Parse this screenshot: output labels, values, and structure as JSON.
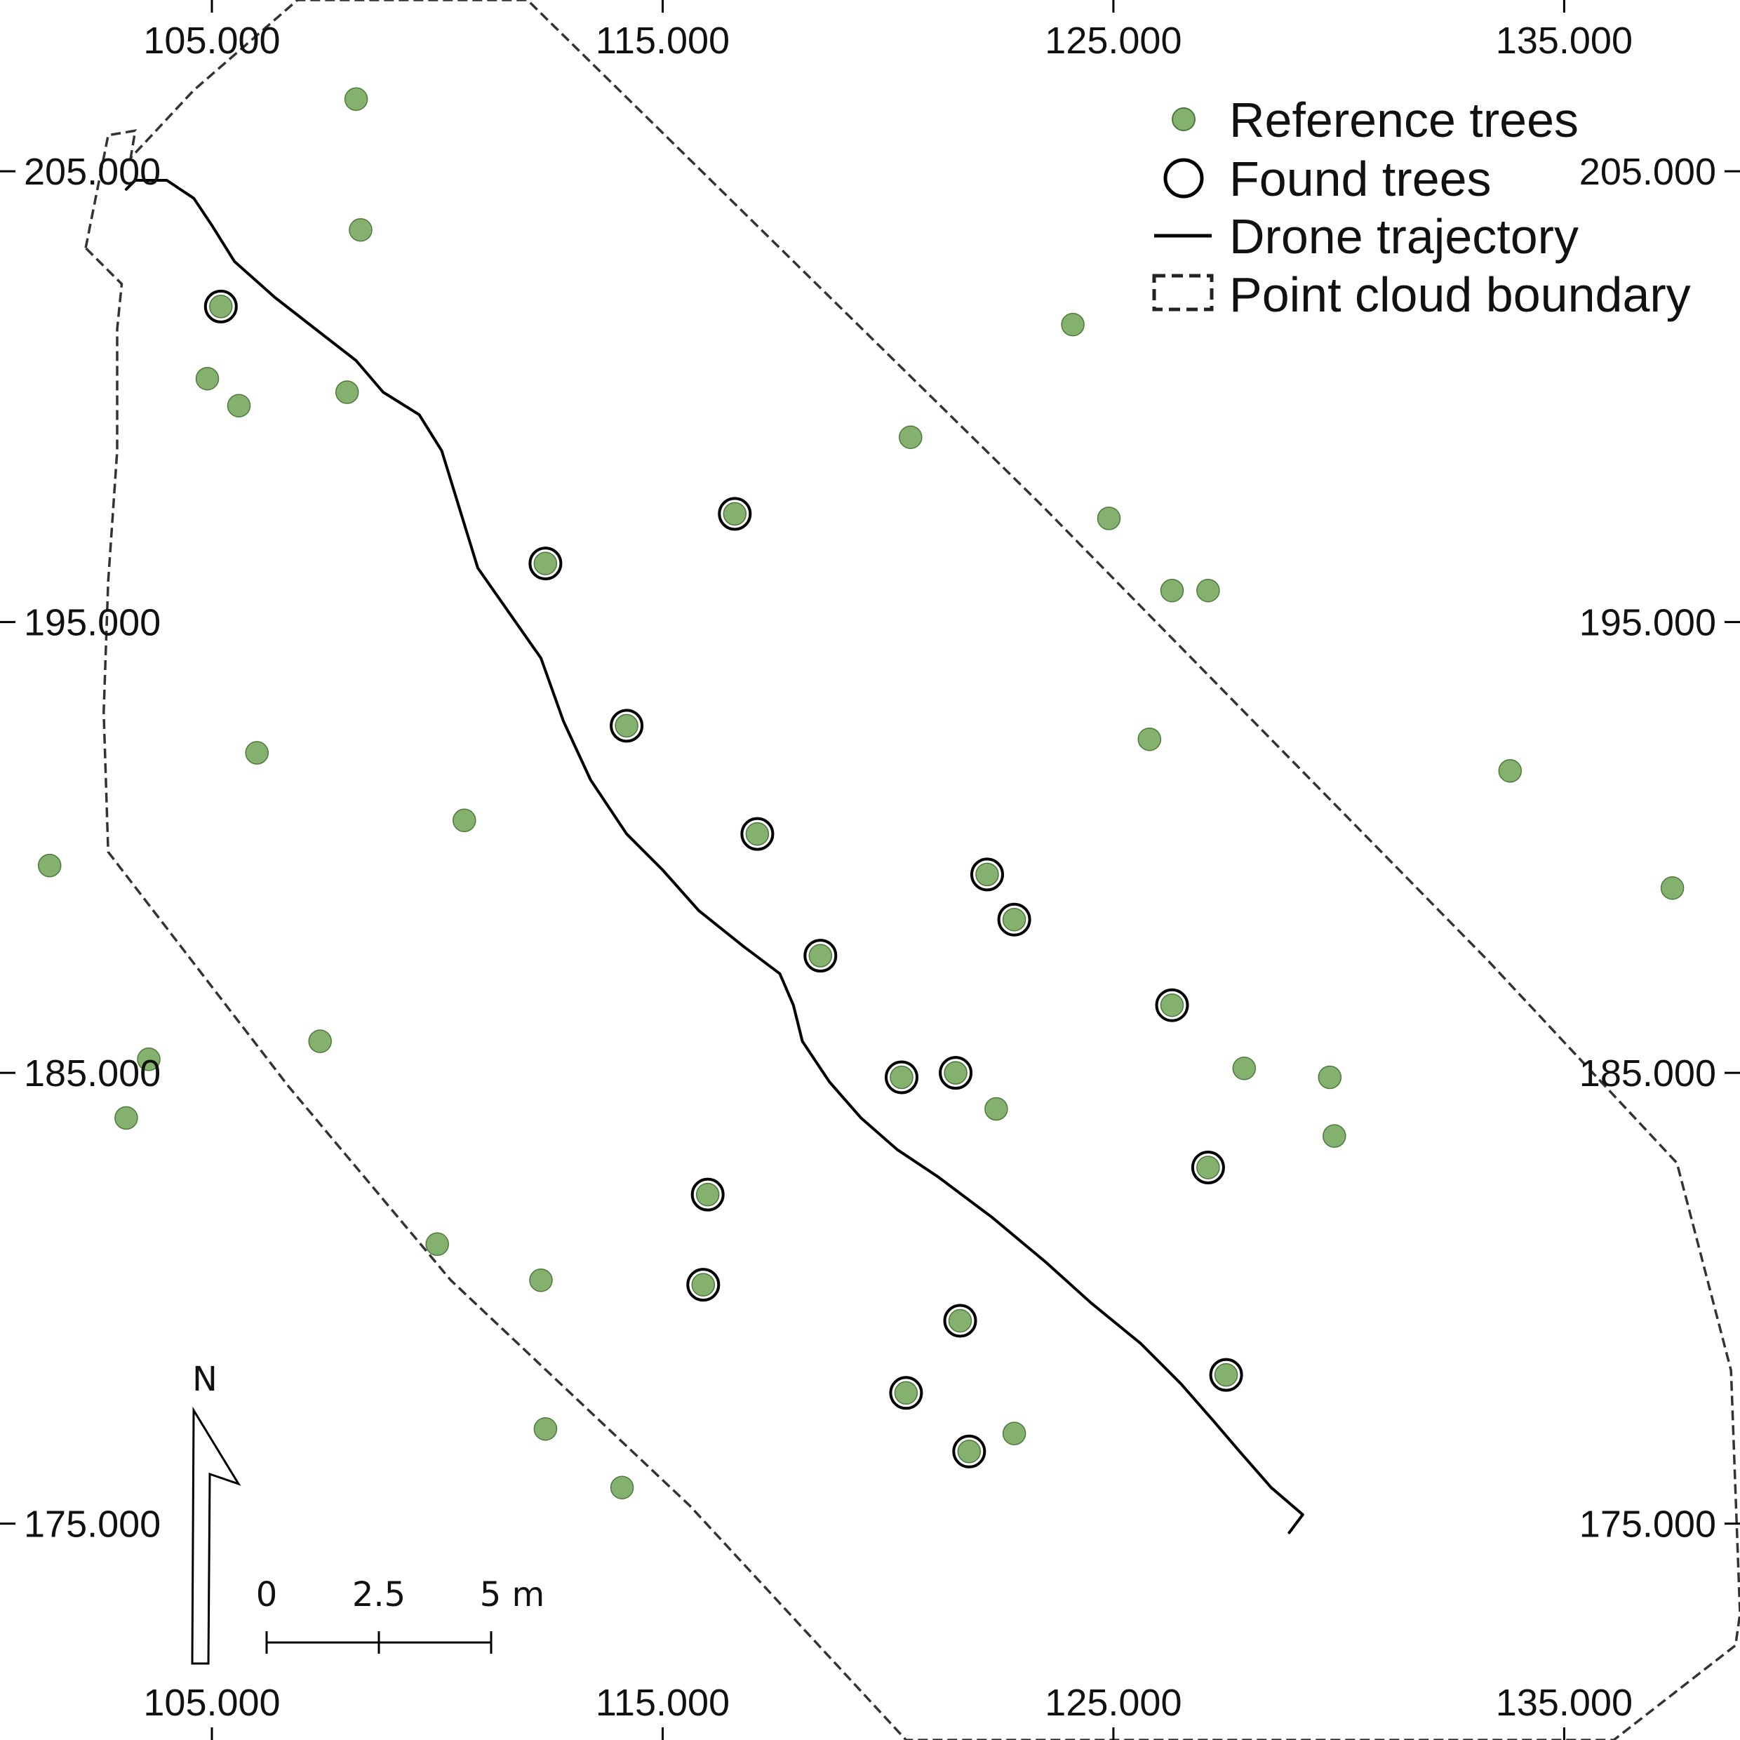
{
  "chart_data": {
    "type": "scatter",
    "x_axis": {
      "ticks": [
        105,
        115,
        125,
        135
      ],
      "tick_labels": [
        "105.000",
        "115.000",
        "125.000",
        "135.000"
      ],
      "placement": "top and bottom"
    },
    "y_axis": {
      "ticks": [
        205,
        195,
        185,
        175
      ],
      "tick_labels": [
        "205.000",
        "195.000",
        "185.000",
        "175.000"
      ],
      "placement": "left and right"
    },
    "xlim": [
      100.3,
      138.9
    ],
    "ylim": [
      170.2,
      208.8
    ],
    "grid": false,
    "legend_position": "top-right",
    "legend": [
      {
        "key": "reference",
        "label": "Reference trees"
      },
      {
        "key": "found",
        "label": "Found trees"
      },
      {
        "key": "trajectory",
        "label": "Drone trajectory"
      },
      {
        "key": "boundary",
        "label": "Point cloud boundary"
      }
    ],
    "colors": {
      "reference": "#84b26e",
      "reference_edge": "#4d7a3c",
      "found_ring": "#000000",
      "lines": "#000000",
      "boundary": "#333333"
    },
    "reference_trees": [
      [
        108.2,
        206.6
      ],
      [
        108.3,
        203.7
      ],
      [
        104.9,
        200.4
      ],
      [
        105.6,
        199.8
      ],
      [
        108.0,
        200.1
      ],
      [
        106.0,
        192.1
      ],
      [
        110.6,
        190.6
      ],
      [
        101.4,
        189.6
      ],
      [
        107.4,
        185.7
      ],
      [
        103.6,
        185.3
      ],
      [
        103.1,
        184.0
      ],
      [
        110.0,
        181.2
      ],
      [
        112.3,
        180.4
      ],
      [
        112.4,
        177.1
      ],
      [
        114.1,
        175.8
      ],
      [
        120.5,
        199.1
      ],
      [
        124.9,
        197.3
      ],
      [
        126.3,
        195.7
      ],
      [
        127.1,
        195.7
      ],
      [
        125.8,
        192.4
      ],
      [
        133.8,
        191.7
      ],
      [
        137.4,
        189.1
      ],
      [
        127.9,
        185.1
      ],
      [
        129.8,
        184.9
      ],
      [
        122.4,
        184.2
      ],
      [
        129.9,
        183.6
      ],
      [
        124.1,
        201.6
      ],
      [
        122.8,
        177.0
      ],
      [
        105.2,
        202.0
      ],
      [
        112.4,
        196.3
      ],
      [
        114.2,
        192.7
      ],
      [
        116.6,
        197.4
      ],
      [
        117.1,
        190.3
      ],
      [
        118.5,
        187.6
      ],
      [
        122.2,
        189.4
      ],
      [
        122.8,
        188.4
      ],
      [
        126.3,
        186.5
      ],
      [
        120.3,
        184.9
      ],
      [
        121.5,
        185.0
      ],
      [
        116.0,
        182.3
      ],
      [
        115.9,
        180.3
      ],
      [
        127.1,
        182.9
      ],
      [
        121.6,
        179.5
      ],
      [
        120.4,
        177.9
      ],
      [
        121.8,
        176.6
      ],
      [
        127.5,
        178.3
      ]
    ],
    "found_trees": [
      [
        105.2,
        202.0
      ],
      [
        112.4,
        196.3
      ],
      [
        114.2,
        192.7
      ],
      [
        116.6,
        197.4
      ],
      [
        117.1,
        190.3
      ],
      [
        118.5,
        187.6
      ],
      [
        122.2,
        189.4
      ],
      [
        122.8,
        188.4
      ],
      [
        126.3,
        186.5
      ],
      [
        120.3,
        184.9
      ],
      [
        121.5,
        185.0
      ],
      [
        116.0,
        182.3
      ],
      [
        115.9,
        180.3
      ],
      [
        127.1,
        182.9
      ],
      [
        121.6,
        179.5
      ],
      [
        120.4,
        177.9
      ],
      [
        121.8,
        176.6
      ],
      [
        127.5,
        178.3
      ]
    ],
    "drone_trajectory": [
      [
        103.1,
        204.6
      ],
      [
        103.3,
        204.8
      ],
      [
        104.0,
        204.8
      ],
      [
        104.6,
        204.4
      ],
      [
        105.0,
        203.8
      ],
      [
        105.5,
        203.0
      ],
      [
        106.4,
        202.2
      ],
      [
        107.3,
        201.5
      ],
      [
        108.2,
        200.8
      ],
      [
        108.8,
        200.1
      ],
      [
        109.6,
        199.6
      ],
      [
        110.1,
        198.8
      ],
      [
        110.5,
        197.5
      ],
      [
        110.9,
        196.2
      ],
      [
        111.6,
        195.2
      ],
      [
        112.3,
        194.2
      ],
      [
        112.8,
        192.8
      ],
      [
        113.4,
        191.5
      ],
      [
        114.2,
        190.3
      ],
      [
        115.0,
        189.5
      ],
      [
        115.8,
        188.6
      ],
      [
        116.8,
        187.8
      ],
      [
        117.6,
        187.2
      ],
      [
        117.9,
        186.5
      ],
      [
        118.1,
        185.7
      ],
      [
        118.7,
        184.8
      ],
      [
        119.4,
        184.0
      ],
      [
        120.2,
        183.3
      ],
      [
        121.1,
        182.7
      ],
      [
        122.3,
        181.8
      ],
      [
        123.5,
        180.8
      ],
      [
        124.5,
        179.9
      ],
      [
        125.6,
        179.0
      ],
      [
        126.5,
        178.1
      ],
      [
        127.2,
        177.3
      ],
      [
        127.8,
        176.6
      ],
      [
        128.5,
        175.8
      ],
      [
        129.2,
        175.2
      ],
      [
        128.9,
        174.8
      ]
    ],
    "point_cloud_boundary": [
      [
        102.2,
        203.3
      ],
      [
        102.7,
        205.8
      ],
      [
        103.3,
        205.9
      ],
      [
        103.2,
        205.3
      ],
      [
        104.6,
        206.8
      ],
      [
        106.9,
        208.8
      ],
      [
        112.0,
        208.8
      ],
      [
        123.4,
        197.6
      ],
      [
        133.3,
        187.5
      ],
      [
        137.5,
        183.0
      ],
      [
        138.7,
        178.4
      ],
      [
        138.9,
        173.0
      ],
      [
        138.8,
        172.3
      ],
      [
        136.1,
        170.2
      ],
      [
        120.4,
        170.2
      ],
      [
        115.6,
        175.4
      ],
      [
        110.3,
        180.4
      ],
      [
        106.7,
        184.7
      ],
      [
        102.7,
        189.9
      ],
      [
        102.6,
        193.0
      ],
      [
        102.7,
        195.9
      ],
      [
        102.9,
        198.8
      ],
      [
        102.9,
        201.5
      ],
      [
        103.0,
        202.5
      ]
    ]
  },
  "scale_bar": {
    "labels": [
      "0",
      "2.5",
      "5 m"
    ]
  },
  "north_arrow": {
    "label": "N"
  }
}
